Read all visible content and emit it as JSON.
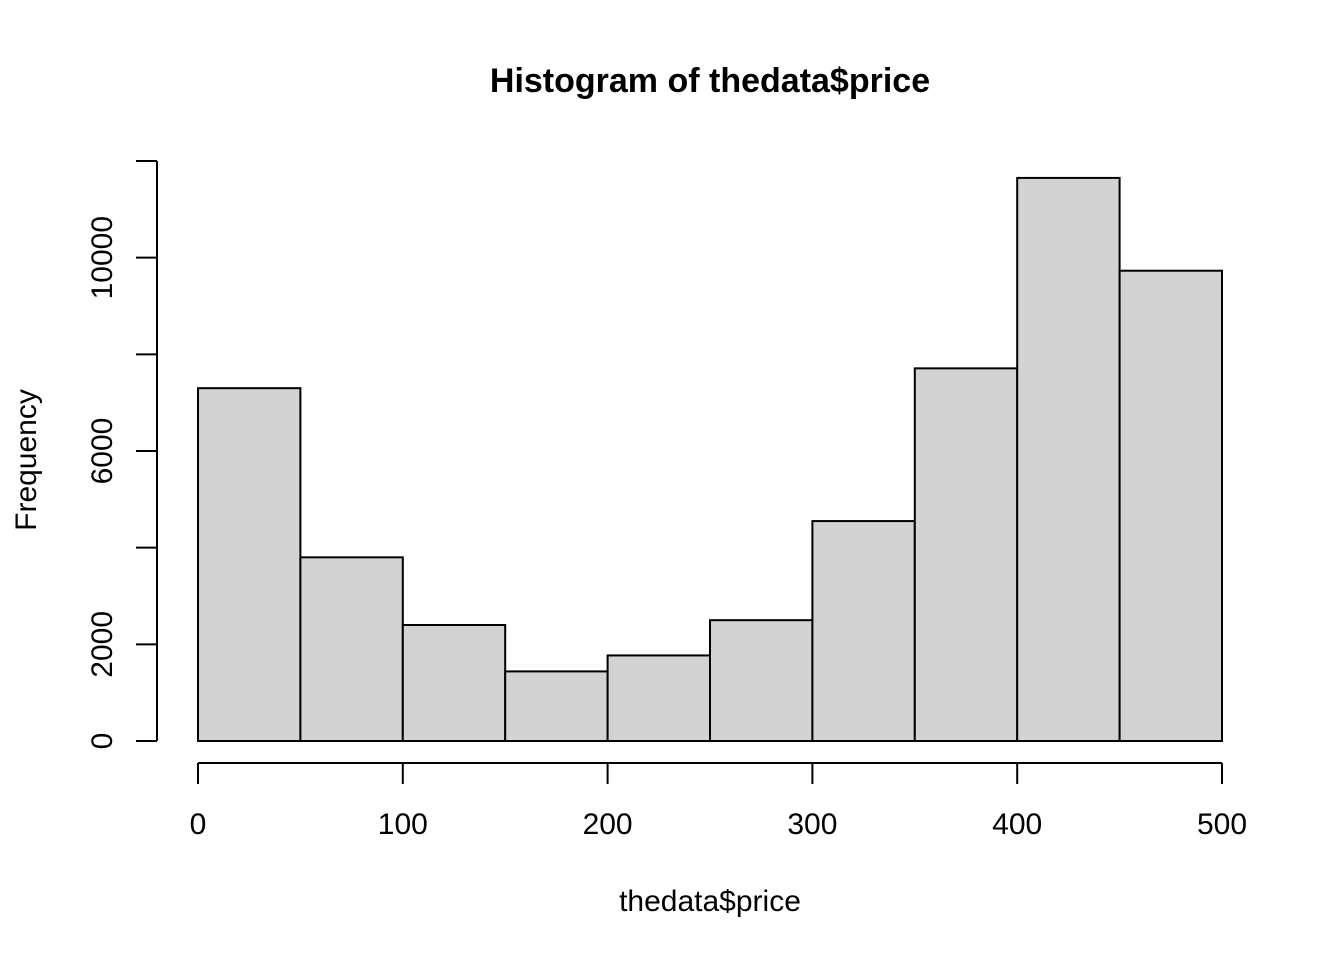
{
  "chart_data": {
    "type": "bar",
    "title": "Histogram of thedata$price",
    "xlabel": "thedata$price",
    "ylabel": "Frequency",
    "bins": [
      {
        "from": 0,
        "to": 50,
        "value": 7300
      },
      {
        "from": 50,
        "to": 100,
        "value": 3800
      },
      {
        "from": 100,
        "to": 150,
        "value": 2400
      },
      {
        "from": 150,
        "to": 200,
        "value": 1440
      },
      {
        "from": 200,
        "to": 250,
        "value": 1770
      },
      {
        "from": 250,
        "to": 300,
        "value": 2500
      },
      {
        "from": 300,
        "to": 350,
        "value": 4550
      },
      {
        "from": 350,
        "to": 400,
        "value": 7710
      },
      {
        "from": 400,
        "to": 450,
        "value": 11650
      },
      {
        "from": 450,
        "to": 500,
        "value": 9730
      }
    ],
    "xlim": [
      0,
      500
    ],
    "ylim": [
      0,
      12000
    ],
    "x_ticks": [
      0,
      100,
      200,
      300,
      400,
      500
    ],
    "x_tick_labels": [
      "0",
      "100",
      "200",
      "300",
      "400",
      "500"
    ],
    "y_ticks": [
      0,
      2000,
      4000,
      6000,
      8000,
      10000,
      12000
    ],
    "y_tick_labels": [
      "0",
      "2000",
      "",
      "6000",
      "",
      "10000",
      ""
    ],
    "grid": false,
    "legend": "none",
    "colors": {
      "bar_fill": "#d3d3d3",
      "bar_stroke": "#000000",
      "background": "#ffffff"
    }
  }
}
